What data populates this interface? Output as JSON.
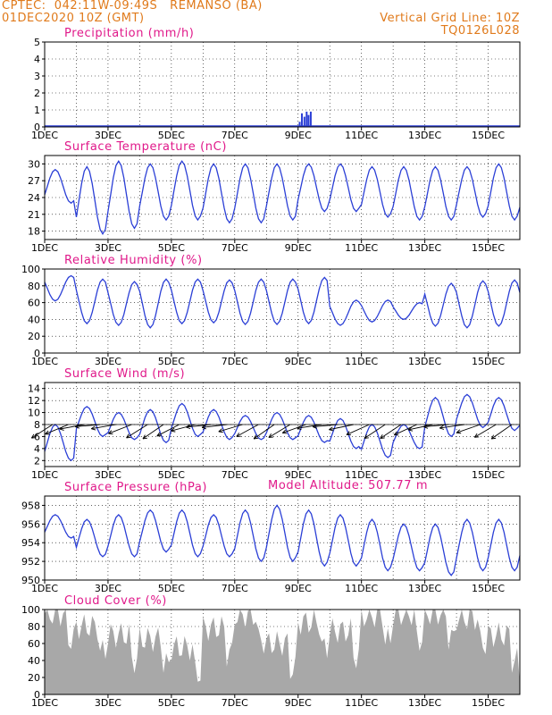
{
  "header": {
    "station": "CPTEC:  042:11W-09:49S   REMANSO (BA)",
    "run": "01DEC2020 10Z (GMT)",
    "grid": "Vertical Grid Line: 10Z",
    "code": "TQ0126L028"
  },
  "colors": {
    "header": "#e07a1b",
    "title": "#e0198a",
    "line": "#2b3fd6",
    "cloud": "#a8a8a8",
    "arrow": "#000000"
  },
  "x_tick_labels": [
    "1DEC",
    "3DEC",
    "5DEC",
    "7DEC",
    "9DEC",
    "11DEC",
    "13DEC",
    "15DEC"
  ],
  "chart_data": [
    {
      "type": "bar",
      "title": "Precipitation (mm/h)",
      "ylim": [
        0,
        5
      ],
      "yticks": [
        0,
        1,
        2,
        3,
        4,
        5
      ],
      "x_range_days": [
        1,
        16
      ],
      "bars": [
        {
          "day": 9.05,
          "value": 0.3
        },
        {
          "day": 9.12,
          "value": 0.8
        },
        {
          "day": 9.2,
          "value": 0.6
        },
        {
          "day": 9.27,
          "value": 0.9
        },
        {
          "day": 9.33,
          "value": 0.7
        },
        {
          "day": 9.4,
          "value": 0.9
        }
      ]
    },
    {
      "type": "line",
      "title": "Surface Temperature (nC)",
      "ylim": [
        16.5,
        31.5
      ],
      "yticks": [
        18,
        21,
        24,
        27,
        30
      ],
      "min": [
        23,
        17.5,
        18.5,
        20,
        20,
        19.5,
        19.5,
        20,
        21.5,
        21.5,
        20.5,
        20,
        20,
        20.5,
        20,
        19.5
      ],
      "max": [
        29,
        29.5,
        30.5,
        30,
        30.5,
        30,
        30,
        30,
        30,
        30,
        29.5,
        29.5,
        29.5,
        29.5,
        30,
        30.5
      ]
    },
    {
      "type": "line",
      "title": "Relative Humidity (%)",
      "ylim": [
        0,
        100
      ],
      "yticks": [
        0,
        20,
        40,
        60,
        80,
        100
      ],
      "min": [
        62,
        35,
        33,
        30,
        35,
        36,
        34,
        34,
        35,
        33,
        37,
        40,
        32,
        30,
        32,
        30
      ],
      "max": [
        92,
        88,
        85,
        88,
        88,
        87,
        88,
        88,
        90,
        63,
        63,
        60,
        83,
        86,
        87,
        86
      ]
    },
    {
      "type": "line",
      "title": "Surface Wind (m/s)",
      "ylim": [
        1,
        15
      ],
      "yticks": [
        2,
        4,
        6,
        8,
        10,
        12,
        14
      ],
      "min": [
        2,
        6,
        5.5,
        5,
        6,
        5.5,
        5.5,
        5.5,
        5,
        4,
        2.5,
        4,
        6,
        7.5,
        7,
        6.5
      ],
      "max": [
        8,
        11,
        10,
        10.5,
        11.5,
        10.5,
        9.5,
        10,
        9.5,
        9,
        8,
        8,
        12.5,
        13,
        12.5,
        12
      ]
    },
    {
      "type": "line",
      "title": "Surface Pressure (hPa)",
      "ylim": [
        950,
        959
      ],
      "yticks": [
        950,
        952,
        954,
        956,
        958
      ],
      "annotation": "Model Altitude:  507.77  m",
      "min": [
        954.5,
        952.5,
        952.5,
        953,
        952.5,
        952.5,
        952,
        952,
        951.5,
        951.5,
        951,
        951,
        950.5,
        951,
        951,
        951.5
      ],
      "max": [
        957,
        956.5,
        957,
        957.5,
        957.5,
        957,
        957.5,
        958,
        957.5,
        957,
        956.5,
        956,
        956,
        956.5,
        956.5,
        956
      ]
    },
    {
      "type": "area",
      "title": "Cloud Cover (%)",
      "ylim": [
        0,
        100
      ],
      "yticks": [
        0,
        20,
        40,
        60,
        80,
        100
      ],
      "daily_cover": [
        95,
        80,
        70,
        65,
        55,
        78,
        93,
        60,
        85,
        75,
        93,
        95,
        96,
        90,
        70,
        20
      ]
    }
  ]
}
